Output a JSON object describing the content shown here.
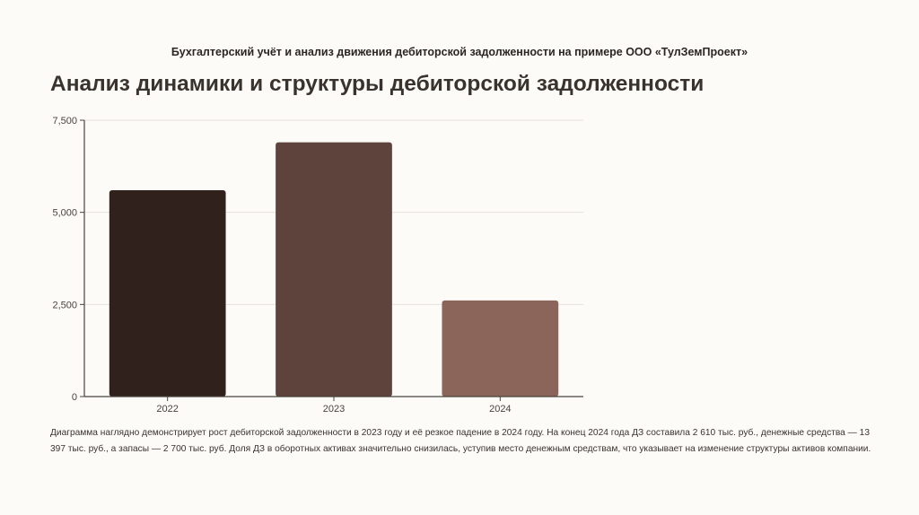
{
  "header": "Бухгалтерский учёт и анализ движения дебиторской задолженности на примере ООО «ТулЗемПроект»",
  "title": "Анализ динамики и структуры дебиторской задолженности",
  "description": "Диаграмма наглядно демонстрирует рост дебиторской задолженности в 2023 году и её резкое падение в 2024 году. На конец 2024 года ДЗ составила 2 610 тыс. руб., денежные средства — 13 397 тыс. руб., а запасы — 2 700 тыс. руб. Доля ДЗ в оборотных активах значительно снизилась, уступив место денежным средствам, что указывает на изменение структуры активов компании.",
  "chart_data": {
    "type": "bar",
    "categories": [
      "2022",
      "2023",
      "2024"
    ],
    "values": [
      5600,
      6900,
      2610
    ],
    "colors": [
      "#30211d",
      "#5d433c",
      "#8b6559"
    ],
    "ylim": [
      0,
      7500
    ],
    "yticks": [
      0,
      2500,
      5000,
      7500
    ],
    "ytick_labels": [
      "0",
      "2,500",
      "5,000",
      "7,500"
    ],
    "grid": true,
    "xlabel": "",
    "ylabel": ""
  }
}
